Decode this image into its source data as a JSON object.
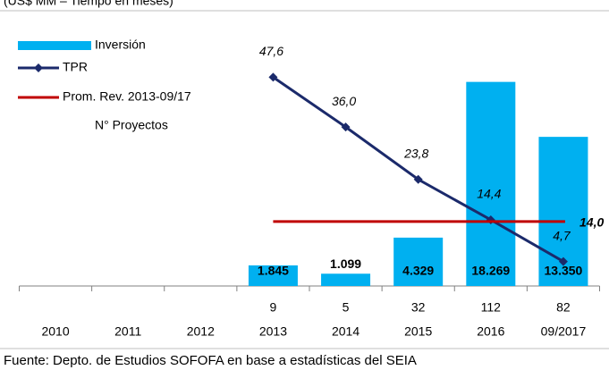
{
  "chart_data": {
    "type": "combo",
    "subtitle": "(US$ MM – Tiempo en meses)",
    "source": "Fuente: Depto. de Estudios SOFOFA en base a estadísticas del SEIA",
    "categories": [
      "2010",
      "2011",
      "2012",
      "2013",
      "2014",
      "2015",
      "2016",
      "09/2017"
    ],
    "ylim": [
      0,
      20000
    ],
    "y2lim": [
      -1,
      51
    ],
    "series": [
      {
        "name": "Inversión",
        "type": "bar",
        "axis": "y",
        "color": "#00b0f0",
        "values": [
          null,
          null,
          null,
          1845,
          1099,
          4329,
          18269,
          13350
        ],
        "value_labels": [
          null,
          null,
          null,
          "1.845",
          "1.099",
          "4.329",
          "18.269",
          "13.350"
        ]
      },
      {
        "name": "TPR",
        "type": "line",
        "axis": "y2",
        "color": "#1b2a6b",
        "values": [
          null,
          null,
          null,
          47.6,
          36.0,
          23.8,
          14.4,
          4.7
        ],
        "value_labels": [
          null,
          null,
          null,
          "47,6",
          "36,0",
          "23,8",
          "14,4",
          "4,7"
        ]
      },
      {
        "name": "N° Proyectos",
        "type": "count",
        "color": "#e87d1e",
        "values": [
          null,
          null,
          null,
          9,
          5,
          32,
          112,
          82
        ]
      }
    ],
    "reference_line": {
      "name": "Prom. Rev. 2013-09/17",
      "axis": "y2",
      "value": 14.0,
      "label": "14,0",
      "color": "#c00000",
      "from": "2013",
      "to": "09/2017"
    }
  }
}
